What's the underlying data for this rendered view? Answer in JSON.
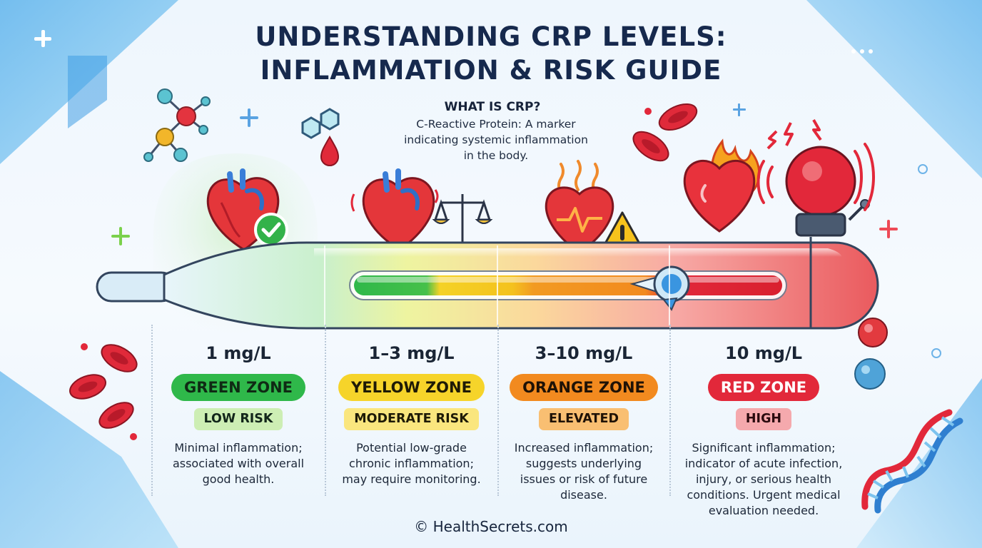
{
  "title": {
    "line1": "UNDERSTANDING CRP LEVELS:",
    "line2": "INFLAMMATION & RISK GUIDE"
  },
  "what_is": {
    "heading": "WHAT IS CRP?",
    "line1": "C-Reactive Protein: A marker",
    "line2": "indicating systemic inflammation",
    "line3": "in the body."
  },
  "zones": [
    {
      "level": "1 mg/L",
      "zone": "GREEN ZONE",
      "risk": "LOW RISK",
      "desc": [
        "Minimal inflammation;",
        "associated with overall",
        "good health."
      ],
      "color": "#2fb84a",
      "pale": "#d9f2c2",
      "icon": "healthy-heart-icon"
    },
    {
      "level": "1–3 mg/L",
      "zone": "YELLOW ZONE",
      "risk": "MODERATE RISK",
      "desc": [
        "Potential low-grade",
        "chronic inflammation;",
        "may require monitoring."
      ],
      "color": "#f4d226",
      "pale": "#fbeb8c",
      "icon": "heart-with-scale-icon"
    },
    {
      "level": "3–10 mg/L",
      "zone": "ORANGE ZONE",
      "risk": "ELEVATED",
      "desc": [
        "Increased inflammation;",
        "suggests underlying",
        "issues or risk of future",
        "disease."
      ],
      "color": "#f28a1f",
      "pale": "#fbc07a",
      "icon": "heart-warning-icon"
    },
    {
      "level": "10 mg/L",
      "zone": "RED ZONE",
      "risk": "HIGH",
      "desc": [
        "Significant inflammation;",
        "indicator of acute infection,",
        "injury, or serious health",
        "conditions. Urgent medical",
        "evaluation needed."
      ],
      "color": "#e2283a",
      "pale": "#f7b7ba",
      "icon": "heart-alarm-icon"
    }
  ],
  "footer": "© HealthSecrets.com",
  "colors": {
    "title": "#16294d",
    "green": "#2fb84a",
    "yellow": "#f4d226",
    "orange": "#f28a1f",
    "red": "#e2283a"
  }
}
